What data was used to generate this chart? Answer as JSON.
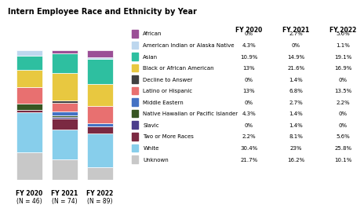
{
  "title": "Intern Employee Race and Ethnicity by Year",
  "years": [
    "FY 2020",
    "FY 2021",
    "FY 2022"
  ],
  "ns": [
    "N = 46",
    "N = 74",
    "N = 89"
  ],
  "categories": [
    "African",
    "American Indian or Alaska Native",
    "Asian",
    "Black or African American",
    "Decline to Answer",
    "Latino or Hispanic",
    "Middle Eastern",
    "Native Hawaiian or Pacific Islander",
    "Slavic",
    "Two or More Races",
    "White",
    "Unknown"
  ],
  "legend_colors": [
    "#9B4F96",
    "#BDD7EE",
    "#2EBFA0",
    "#E8C840",
    "#404040",
    "#E87070",
    "#4472C4",
    "#375623",
    "#4B3E8C",
    "#7B2942",
    "#87CEEB",
    "#C8C8C8"
  ],
  "bar_stack_order": [
    11,
    10,
    9,
    8,
    7,
    6,
    5,
    4,
    3,
    2,
    1,
    0
  ],
  "values": {
    "FY 2020": [
      0.0,
      4.3,
      10.9,
      13.0,
      0.0,
      13.0,
      0.0,
      4.3,
      0.0,
      2.2,
      30.4,
      21.7
    ],
    "FY 2021": [
      2.7,
      0.0,
      14.9,
      21.6,
      1.4,
      6.8,
      2.7,
      1.4,
      1.4,
      8.1,
      23.0,
      16.2
    ],
    "FY 2022": [
      5.6,
      1.1,
      19.1,
      16.9,
      0.0,
      13.5,
      2.2,
      0.0,
      0.0,
      5.6,
      25.8,
      10.1
    ]
  },
  "table_data": {
    "FY 2020": [
      "0%",
      "4.3%",
      "10.9%",
      "13%",
      "0%",
      "13%",
      "0%",
      "4.3%",
      "0%",
      "2.2%",
      "30.4%",
      "21.7%"
    ],
    "FY 2021": [
      "2.7%",
      "0%",
      "14.9%",
      "21.6%",
      "1.4%",
      "6.8%",
      "2.7%",
      "1.4%",
      "1.4%",
      "8.1%",
      "23%",
      "16.2%"
    ],
    "FY 2022": [
      "5.6%",
      "1.1%",
      "19.1%",
      "16.9%",
      "0%",
      "13.5%",
      "2.2%",
      "0%",
      "0%",
      "5.6%",
      "25.8%",
      "10.1%"
    ]
  },
  "background_color": "#FFFFFF",
  "bar_width": 0.55,
  "bar_gap": 0.75
}
